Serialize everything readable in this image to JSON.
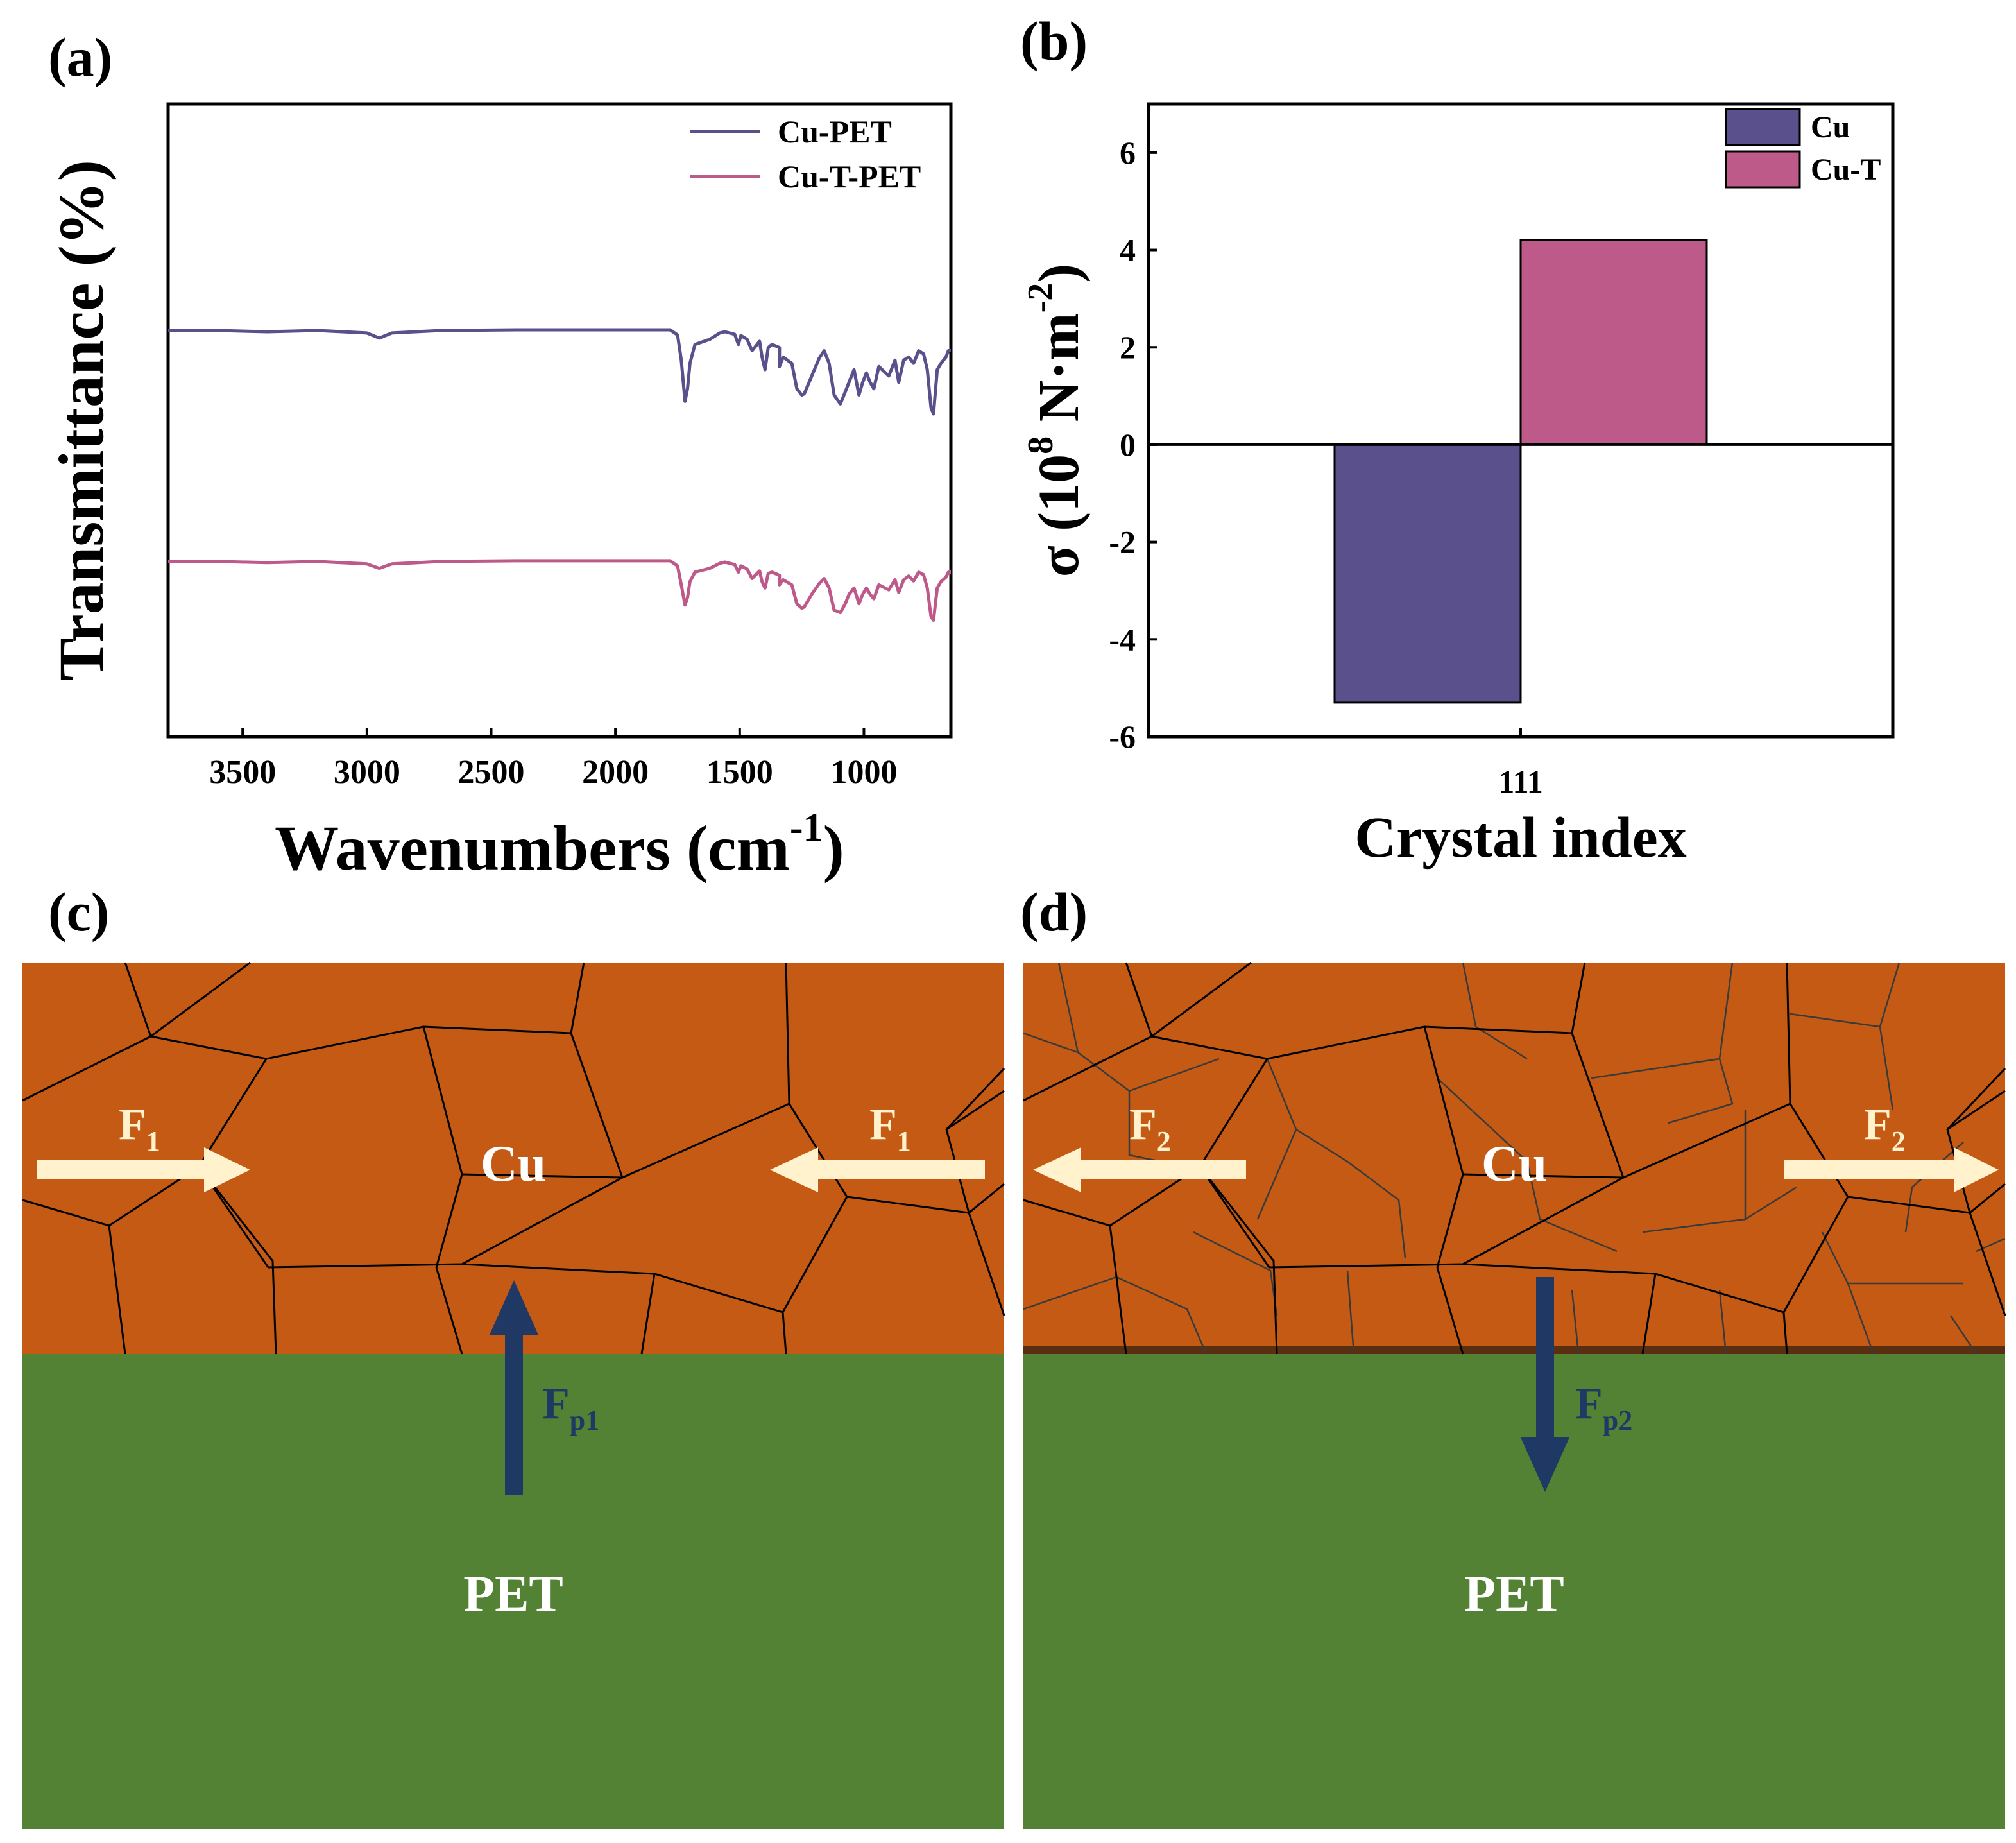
{
  "colors": {
    "cu_pet": "#5a518c",
    "cu_t_pet": "#bd5a8a",
    "bar_cu": "#5a518c",
    "bar_cu_t": "#bd5a8a",
    "copper": "#c45a14",
    "pet": "#548235",
    "force_light": "#fff2cc",
    "force_dark": "#1f3864",
    "label_white": "#ffffff"
  },
  "chart_data": [
    {
      "panel": "(a)",
      "type": "line",
      "title": "",
      "xlabel": "Wavenumbers (cm",
      "xlabel_sup": "-1",
      "xlabel_end": ")",
      "ylabel": "Transmittance (%)",
      "xlim": [
        3800,
        650
      ],
      "xticks": [
        "3500",
        "3000",
        "2500",
        "2000",
        "1500",
        "1000"
      ],
      "xtick_values": [
        3500,
        3000,
        2500,
        2000,
        1500,
        1000
      ],
      "y_hidden": true,
      "ylim": [
        0,
        100
      ],
      "legend_position": "top-right",
      "series": [
        {
          "name": "Cu-PET",
          "points": [
            [
              3800,
              64.2
            ],
            [
              3600,
              64.2
            ],
            [
              3400,
              64.0
            ],
            [
              3200,
              64.2
            ],
            [
              3000,
              63.8
            ],
            [
              2950,
              63.0
            ],
            [
              2900,
              63.8
            ],
            [
              2700,
              64.2
            ],
            [
              2400,
              64.3
            ],
            [
              2000,
              64.3
            ],
            [
              1780,
              64.3
            ],
            [
              1750,
              63.5
            ],
            [
              1735,
              59.5
            ],
            [
              1720,
              53.0
            ],
            [
              1710,
              55.0
            ],
            [
              1700,
              59.0
            ],
            [
              1680,
              62.0
            ],
            [
              1620,
              62.8
            ],
            [
              1580,
              63.8
            ],
            [
              1560,
              64.0
            ],
            [
              1520,
              63.6
            ],
            [
              1505,
              62.0
            ],
            [
              1495,
              63.4
            ],
            [
              1470,
              62.8
            ],
            [
              1450,
              61.0
            ],
            [
              1420,
              62.5
            ],
            [
              1410,
              60.0
            ],
            [
              1398,
              58.0
            ],
            [
              1385,
              61.5
            ],
            [
              1370,
              62.0
            ],
            [
              1340,
              61.5
            ],
            [
              1340,
              58.5
            ],
            [
              1325,
              60.0
            ],
            [
              1290,
              59.0
            ],
            [
              1270,
              55.0
            ],
            [
              1250,
              54.0
            ],
            [
              1240,
              54.2
            ],
            [
              1210,
              57.0
            ],
            [
              1180,
              59.8
            ],
            [
              1160,
              61.0
            ],
            [
              1140,
              59.0
            ],
            [
              1120,
              54.0
            ],
            [
              1095,
              52.6
            ],
            [
              1075,
              54.5
            ],
            [
              1060,
              56.0
            ],
            [
              1040,
              58.0
            ],
            [
              1020,
              54.0
            ],
            [
              1005,
              56.0
            ],
            [
              990,
              57.5
            ],
            [
              975,
              56.0
            ],
            [
              960,
              55.0
            ],
            [
              940,
              58.5
            ],
            [
              900,
              57.0
            ],
            [
              875,
              59.5
            ],
            [
              860,
              56.0
            ],
            [
              840,
              59.5
            ],
            [
              820,
              60.0
            ],
            [
              800,
              59.0
            ],
            [
              780,
              61.0
            ],
            [
              760,
              60.5
            ],
            [
              745,
              58.0
            ],
            [
              730,
              52.0
            ],
            [
              720,
              51.0
            ],
            [
              705,
              58.0
            ],
            [
              690,
              59.0
            ],
            [
              670,
              60.0
            ],
            [
              660,
              61.0
            ],
            [
              650,
              61.0
            ]
          ]
        },
        {
          "name": "Cu-T-PET",
          "points": [
            [
              3800,
              27.7
            ],
            [
              3600,
              27.7
            ],
            [
              3400,
              27.5
            ],
            [
              3200,
              27.7
            ],
            [
              3000,
              27.3
            ],
            [
              2950,
              26.6
            ],
            [
              2900,
              27.3
            ],
            [
              2700,
              27.7
            ],
            [
              2400,
              27.8
            ],
            [
              2000,
              27.8
            ],
            [
              1780,
              27.8
            ],
            [
              1750,
              27.0
            ],
            [
              1735,
              24.0
            ],
            [
              1720,
              20.8
            ],
            [
              1710,
              22.0
            ],
            [
              1700,
              24.5
            ],
            [
              1680,
              26.0
            ],
            [
              1620,
              26.6
            ],
            [
              1580,
              27.4
            ],
            [
              1560,
              27.6
            ],
            [
              1520,
              27.2
            ],
            [
              1505,
              26.0
            ],
            [
              1495,
              27.0
            ],
            [
              1470,
              26.5
            ],
            [
              1450,
              25.0
            ],
            [
              1420,
              26.2
            ],
            [
              1410,
              24.5
            ],
            [
              1398,
              23.5
            ],
            [
              1385,
              25.8
            ],
            [
              1370,
              26.0
            ],
            [
              1340,
              25.5
            ],
            [
              1340,
              24.0
            ],
            [
              1325,
              24.8
            ],
            [
              1290,
              24.0
            ],
            [
              1270,
              21.0
            ],
            [
              1250,
              20.3
            ],
            [
              1240,
              20.5
            ],
            [
              1210,
              22.5
            ],
            [
              1180,
              24.2
            ],
            [
              1160,
              25.0
            ],
            [
              1140,
              23.5
            ],
            [
              1120,
              20.0
            ],
            [
              1095,
              19.6
            ],
            [
              1075,
              21.0
            ],
            [
              1060,
              22.5
            ],
            [
              1040,
              23.5
            ],
            [
              1020,
              21.0
            ],
            [
              1005,
              22.5
            ],
            [
              990,
              23.5
            ],
            [
              975,
              22.5
            ],
            [
              960,
              21.8
            ],
            [
              940,
              24.0
            ],
            [
              900,
              23.2
            ],
            [
              875,
              24.8
            ],
            [
              860,
              22.8
            ],
            [
              840,
              24.8
            ],
            [
              820,
              25.4
            ],
            [
              800,
              24.6
            ],
            [
              780,
              26.0
            ],
            [
              760,
              25.6
            ],
            [
              745,
              23.5
            ],
            [
              730,
              19.0
            ],
            [
              720,
              18.4
            ],
            [
              705,
              23.5
            ],
            [
              690,
              24.5
            ],
            [
              670,
              25.2
            ],
            [
              660,
              26.0
            ],
            [
              650,
              26.0
            ]
          ]
        }
      ]
    },
    {
      "panel": "(b)",
      "type": "bar",
      "title": "",
      "xlabel": "Crystal index",
      "ylabel": "σ (10",
      "ylabel_sup": "8",
      "ylabel_mid": " N·m",
      "ylabel_sup2": "-2",
      "ylabel_end": ")",
      "categories": [
        "111"
      ],
      "series": [
        {
          "name": "Cu",
          "values": [
            -5.3
          ]
        },
        {
          "name": "Cu-T",
          "values": [
            4.2
          ]
        }
      ],
      "ylim": [
        -6,
        7
      ],
      "yticks": [
        "-6",
        "-4",
        "-2",
        "0",
        "2",
        "4",
        "6"
      ],
      "ytick_values": [
        -6,
        -4,
        -2,
        0,
        2,
        4,
        6
      ],
      "legend_position": "top-right"
    }
  ],
  "panels": {
    "a_label": "(a)",
    "b_label": "(b)",
    "c_label": "(c)",
    "d_label": "(d)"
  },
  "schematic_c": {
    "cu_label": "Cu",
    "pet_label": "PET",
    "force_label": "F",
    "force_sub": "1",
    "force_left_label": "F",
    "force_left_sub": "1",
    "perp_force_label": "F",
    "perp_force_sub": "p1"
  },
  "schematic_d": {
    "cu_label": "Cu",
    "pet_label": "PET",
    "force_label": "F",
    "force_sub": "2",
    "force_right_label": "F",
    "force_right_sub": "2",
    "perp_force_label": "F",
    "perp_force_sub": "p2"
  }
}
